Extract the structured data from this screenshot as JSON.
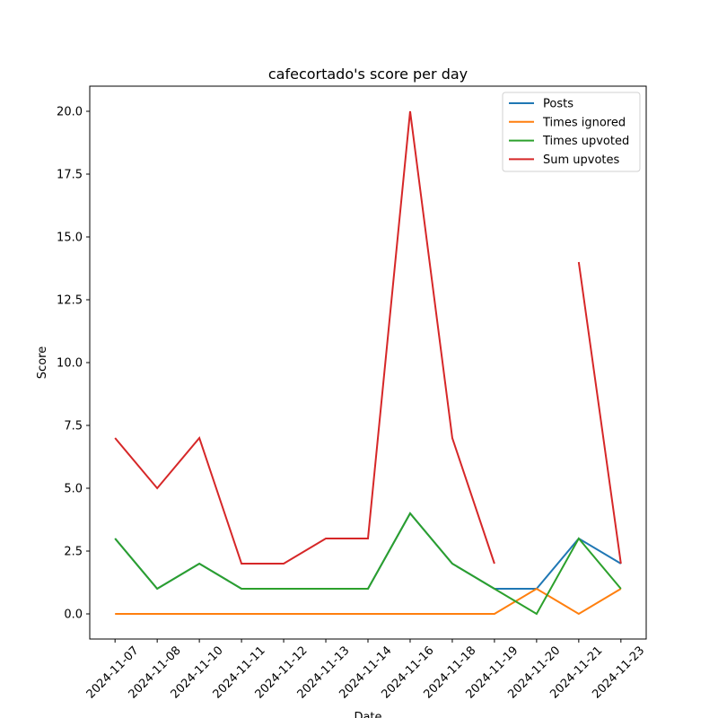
{
  "chart_data": {
    "type": "line",
    "title": "cafecortado's score per day",
    "xlabel": "Date",
    "ylabel": "Score",
    "categories": [
      "2024-11-07",
      "2024-11-08",
      "2024-11-10",
      "2024-11-11",
      "2024-11-12",
      "2024-11-13",
      "2024-11-14",
      "2024-11-16",
      "2024-11-18",
      "2024-11-19",
      "2024-11-20",
      "2024-11-21",
      "2024-11-23"
    ],
    "series": [
      {
        "name": "Posts",
        "color": "#1f77b4",
        "values": [
          3,
          1,
          2,
          1,
          1,
          1,
          1,
          4,
          2,
          1,
          1,
          3,
          2
        ]
      },
      {
        "name": "Times ignored",
        "color": "#ff7f0e",
        "values": [
          0,
          0,
          0,
          0,
          0,
          0,
          0,
          0,
          0,
          0,
          1,
          0,
          1
        ]
      },
      {
        "name": "Times upvoted",
        "color": "#2ca02c",
        "values": [
          3,
          1,
          2,
          1,
          1,
          1,
          1,
          4,
          2,
          1,
          0,
          3,
          1
        ]
      },
      {
        "name": "Sum upvotes",
        "color": "#d62728",
        "values": [
          7,
          5,
          7,
          2,
          2,
          3,
          3,
          20,
          7,
          2,
          null,
          14,
          2
        ]
      }
    ],
    "ylim": [
      -1,
      21
    ],
    "yticks": [
      {
        "value": 0,
        "label": "0.0"
      },
      {
        "value": 2.5,
        "label": "2.5"
      },
      {
        "value": 5,
        "label": "5.0"
      },
      {
        "value": 7.5,
        "label": "7.5"
      },
      {
        "value": 10,
        "label": "10.0"
      },
      {
        "value": 12.5,
        "label": "12.5"
      },
      {
        "value": 15,
        "label": "15.0"
      },
      {
        "value": 17.5,
        "label": "17.5"
      },
      {
        "value": 20,
        "label": "20.0"
      }
    ],
    "legend": "upper right"
  }
}
